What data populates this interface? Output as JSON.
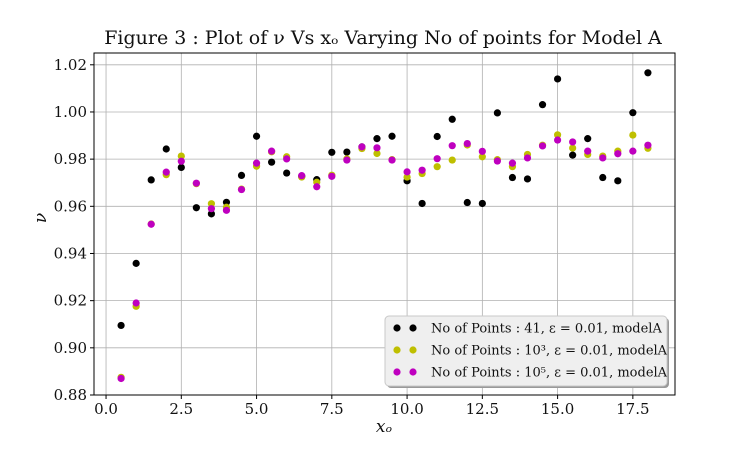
{
  "chart_data": {
    "type": "scatter",
    "title": "Figure 3 : Plot of ν Vs xₒ Varying No of points for Model A",
    "xlabel": "xₒ",
    "ylabel": "ν",
    "xlim": [
      -0.4,
      18.9
    ],
    "ylim": [
      0.88,
      1.025
    ],
    "xticks": [
      0.0,
      2.5,
      5.0,
      7.5,
      10.0,
      12.5,
      15.0,
      17.5
    ],
    "xtick_labels": [
      "0.0",
      "2.5",
      "5.0",
      "7.5",
      "10.0",
      "12.5",
      "15.0",
      "17.5"
    ],
    "yticks": [
      0.88,
      0.9,
      0.92,
      0.94,
      0.96,
      0.98,
      1.0,
      1.02
    ],
    "ytick_labels": [
      "0.88",
      "0.90",
      "0.92",
      "0.94",
      "0.96",
      "0.98",
      "1.00",
      "1.02"
    ],
    "grid": true,
    "legend_position": "lower-right",
    "series": [
      {
        "name": "No of Points : 41, ε = 0.01, modelA",
        "color": "#000000",
        "x": [
          0.5,
          1.0,
          1.5,
          2.0,
          2.5,
          3.0,
          3.5,
          4.0,
          4.5,
          5.0,
          5.5,
          6.0,
          6.5,
          7.0,
          7.5,
          8.0,
          8.5,
          9.0,
          9.5,
          10.0,
          10.5,
          11.0,
          11.5,
          12.0,
          12.5,
          13.0,
          13.5,
          14.0,
          14.5,
          15.0,
          15.5,
          16.0,
          16.5,
          17.0,
          17.5,
          18.0
        ],
        "y": [
          0.9095,
          0.9358,
          0.9712,
          0.9843,
          0.9765,
          0.9594,
          0.9568,
          0.9617,
          0.9731,
          0.9897,
          0.9787,
          0.9741,
          0.9727,
          0.9713,
          0.9829,
          0.983,
          0.9852,
          0.9887,
          0.9897,
          0.9708,
          0.9612,
          0.9896,
          0.9969,
          0.9616,
          0.9612,
          0.9996,
          0.9722,
          0.9716,
          1.0031,
          1.014,
          0.9817,
          0.9887,
          0.9722,
          0.9708,
          0.9997,
          1.0166
        ]
      },
      {
        "name": "No of Points : 10³, ε = 0.01, modelA",
        "color": "#bfbf00",
        "x": [
          0.5,
          1.0,
          1.5,
          2.0,
          2.5,
          3.0,
          3.5,
          4.0,
          4.5,
          5.0,
          5.5,
          6.0,
          6.5,
          7.0,
          7.5,
          8.0,
          8.5,
          9.0,
          9.5,
          10.0,
          10.5,
          11.0,
          11.5,
          12.0,
          12.5,
          13.0,
          13.5,
          14.0,
          14.5,
          15.0,
          15.5,
          16.0,
          16.5,
          17.0,
          17.5,
          18.0
        ],
        "y": [
          0.8875,
          0.9176,
          0.9525,
          0.9734,
          0.9813,
          0.9696,
          0.9611,
          0.9596,
          0.9673,
          0.977,
          0.9831,
          0.981,
          0.9724,
          0.9702,
          0.9732,
          0.9801,
          0.9845,
          0.9824,
          0.9798,
          0.9724,
          0.9739,
          0.9768,
          0.9796,
          0.986,
          0.981,
          0.9798,
          0.9768,
          0.982,
          0.9859,
          0.9903,
          0.9847,
          0.982,
          0.9813,
          0.9834,
          0.9902,
          0.9846
        ]
      },
      {
        "name": "No of Points : 10⁵, ε = 0.01, modelA",
        "color": "#bf00bf",
        "x": [
          0.5,
          1.0,
          1.5,
          2.0,
          2.5,
          3.0,
          3.5,
          4.0,
          4.5,
          5.0,
          5.5,
          6.0,
          6.5,
          7.0,
          7.5,
          8.0,
          8.5,
          9.0,
          9.5,
          10.0,
          10.5,
          11.0,
          11.5,
          12.0,
          12.5,
          13.0,
          13.5,
          14.0,
          14.5,
          15.0,
          15.5,
          16.0,
          16.5,
          17.0,
          17.5,
          18.0
        ],
        "y": [
          0.887,
          0.919,
          0.9524,
          0.9745,
          0.9791,
          0.9698,
          0.959,
          0.9583,
          0.9671,
          0.9783,
          0.9834,
          0.9801,
          0.973,
          0.9683,
          0.9727,
          0.9796,
          0.9852,
          0.9848,
          0.9796,
          0.9746,
          0.9753,
          0.9802,
          0.9857,
          0.9866,
          0.9833,
          0.9792,
          0.9783,
          0.9805,
          0.9856,
          0.9881,
          0.9873,
          0.9834,
          0.9805,
          0.9823,
          0.9834,
          0.9859
        ]
      }
    ]
  }
}
